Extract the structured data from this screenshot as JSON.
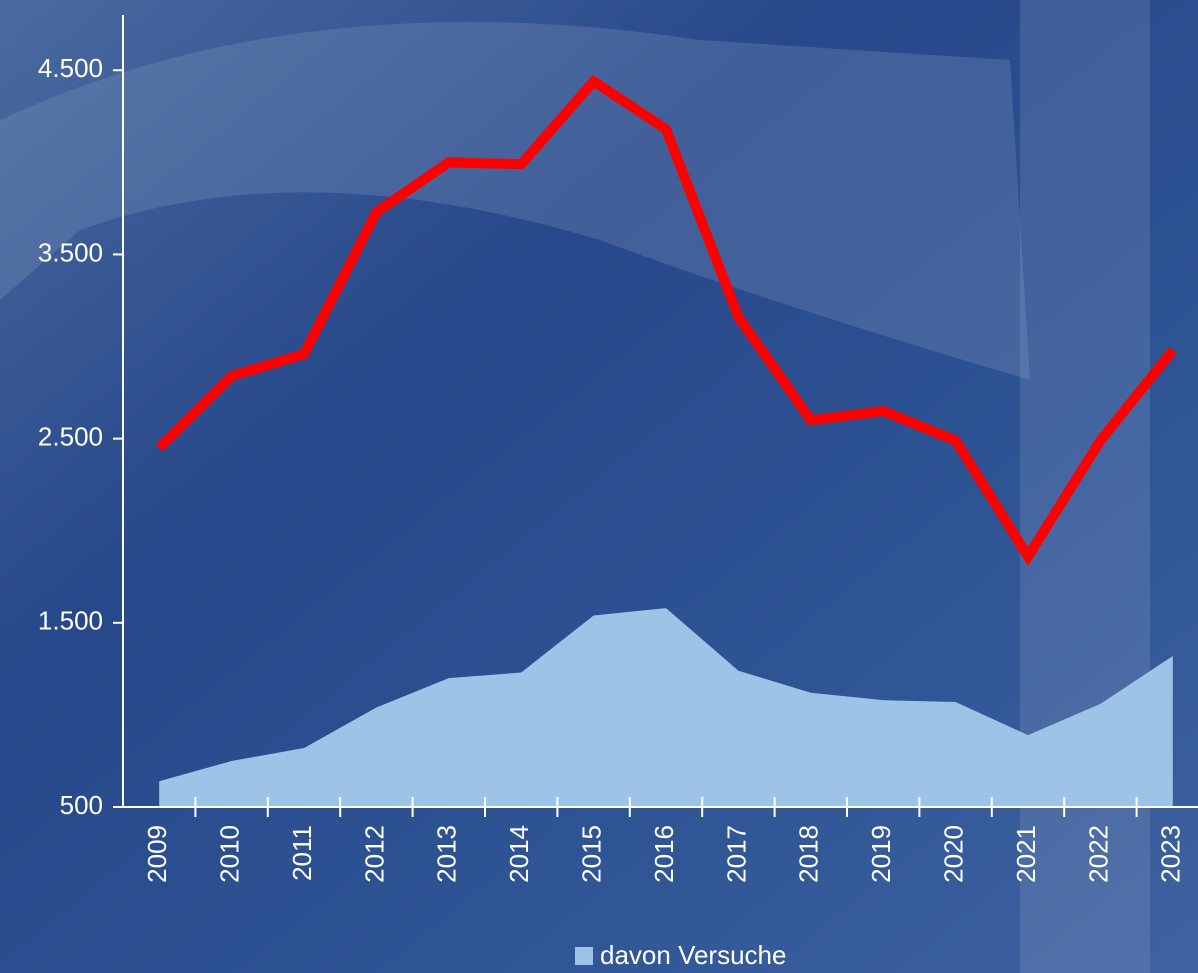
{
  "chart_data": {
    "type": "line-area",
    "categories": [
      "2009",
      "2010",
      "2011",
      "2012",
      "2013",
      "2014",
      "2015",
      "2016",
      "2017",
      "2018",
      "2019",
      "2020",
      "2021",
      "2022",
      "2023"
    ],
    "series": [
      {
        "type": "line",
        "color": "#ff0000",
        "values": [
          2450,
          2840,
          2960,
          3730,
          4000,
          3990,
          4440,
          4180,
          3160,
          2600,
          2650,
          2490,
          1860,
          2490,
          2980
        ]
      },
      {
        "type": "area",
        "name": "davon Versuche",
        "color": "#9dc3e6",
        "values": [
          640,
          750,
          820,
          1040,
          1200,
          1230,
          1540,
          1580,
          1240,
          1120,
          1080,
          1070,
          890,
          1060,
          1320
        ]
      }
    ],
    "ylim": [
      500,
      4800
    ],
    "yticks": [
      500,
      {
        "value": 1500,
        "label": "1.500"
      },
      {
        "value": 2500,
        "label": "2.500"
      },
      {
        "value": 3500,
        "label": "3.500"
      },
      {
        "value": 4500,
        "label": "4.500"
      }
    ],
    "legend": "bottom"
  }
}
